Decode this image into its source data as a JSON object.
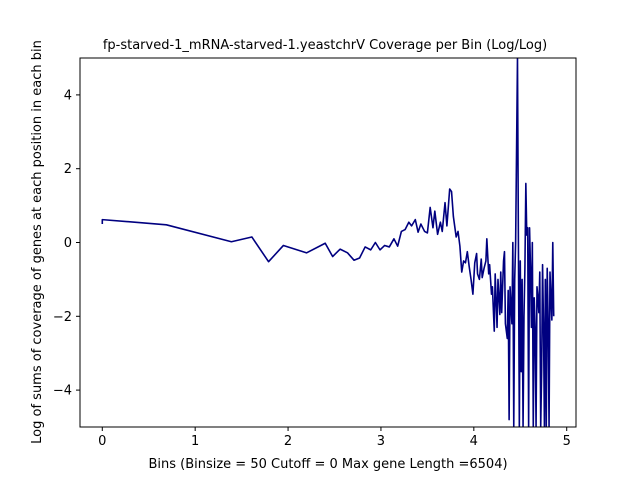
{
  "chart_data": {
    "type": "line",
    "title": "fp-starved-1_mRNA-starved-1.yeastchrV Coverage per Bin (Log/Log)",
    "xlabel": "Bins  (Binsize = 50 Cutoff = 0 Max gene Length =6504)",
    "ylabel": "Log of sums of coverage of genes at each position in each bin",
    "xlim": [
      -0.24,
      5.1
    ],
    "ylim": [
      -5,
      5
    ],
    "xticks": [
      0,
      1,
      2,
      3,
      4,
      5
    ],
    "yticks": [
      -4,
      -2,
      0,
      2,
      4
    ],
    "grid": false,
    "line_color": "#000080",
    "series": [
      {
        "x": [
          0.0,
          0.0,
          0.69,
          1.39,
          1.61,
          1.79,
          1.95,
          2.2,
          2.4,
          2.48,
          2.56,
          2.64,
          2.71,
          2.77,
          2.83,
          2.89,
          2.94,
          2.99,
          3.04,
          3.09,
          3.14,
          3.18,
          3.22,
          3.26,
          3.3,
          3.33,
          3.37,
          3.4,
          3.43,
          3.47,
          3.5,
          3.53,
          3.56,
          3.58,
          3.61,
          3.64,
          3.66,
          3.69,
          3.71,
          3.74,
          3.76,
          3.78,
          3.81,
          3.83,
          3.85,
          3.87,
          3.89,
          3.91,
          3.93,
          3.95,
          3.97,
          3.99,
          4.01,
          4.03,
          4.04,
          4.06,
          4.08,
          4.09,
          4.11,
          4.13,
          4.14,
          4.16,
          4.17,
          4.19,
          4.2,
          4.22,
          4.23,
          4.25,
          4.26,
          4.28,
          4.29,
          4.3,
          4.32,
          4.33,
          4.34,
          4.36,
          4.37,
          4.38,
          4.39,
          4.41,
          4.42,
          4.43,
          4.44,
          4.45,
          4.47,
          4.48,
          4.49,
          4.5,
          4.51,
          4.52,
          4.53,
          4.54,
          4.55,
          4.56,
          4.57,
          4.58,
          4.59,
          4.6,
          4.61,
          4.62,
          4.63,
          4.64,
          4.65,
          4.66,
          4.67,
          4.68,
          4.69,
          4.7,
          4.71,
          4.72,
          4.73,
          4.74,
          4.75,
          4.76,
          4.77,
          4.78,
          4.79,
          4.8,
          4.81,
          4.82,
          4.83,
          4.84,
          4.85,
          4.86
        ],
        "y": [
          0.5,
          0.62,
          0.48,
          0.02,
          0.15,
          -0.52,
          -0.08,
          -0.28,
          -0.02,
          -0.38,
          -0.18,
          -0.28,
          -0.48,
          -0.42,
          -0.12,
          -0.2,
          0.0,
          -0.2,
          -0.08,
          -0.12,
          0.1,
          -0.1,
          0.3,
          0.35,
          0.55,
          0.45,
          0.62,
          0.28,
          0.5,
          0.3,
          0.26,
          0.95,
          0.4,
          0.85,
          0.22,
          0.55,
          0.3,
          1.08,
          0.45,
          1.45,
          1.38,
          0.7,
          0.15,
          0.3,
          -0.1,
          -0.8,
          -0.5,
          -0.55,
          -0.25,
          -0.65,
          -1.0,
          -1.4,
          -0.55,
          -0.3,
          -0.85,
          -1.0,
          -0.45,
          -0.95,
          -0.7,
          -0.5,
          0.1,
          -0.85,
          -0.6,
          -1.4,
          -1.2,
          -2.4,
          -0.85,
          -2.3,
          -1.0,
          -1.95,
          -0.8,
          -1.9,
          -0.5,
          -0.25,
          -2.2,
          -2.6,
          -1.3,
          -4.8,
          -1.2,
          -2.2,
          0.0,
          -5.0,
          -1.0,
          0.0,
          5.0,
          0.0,
          -5.0,
          -0.5,
          -3.5,
          -1.0,
          -5.0,
          -2.0,
          -0.7,
          1.6,
          0.2,
          0.4,
          -5.0,
          0.4,
          -0.7,
          -2.3,
          0.0,
          -5.0,
          -1.5,
          -2.3,
          -5.0,
          -1.2,
          -1.5,
          -1.9,
          -0.8,
          -5.0,
          -3.5,
          -0.6,
          -2.2,
          -5.0,
          -1.0,
          -5.0,
          -0.7,
          -2.1,
          -5.0,
          -0.8,
          -1.5,
          -2.1,
          0.0,
          -2.0
        ]
      }
    ]
  }
}
